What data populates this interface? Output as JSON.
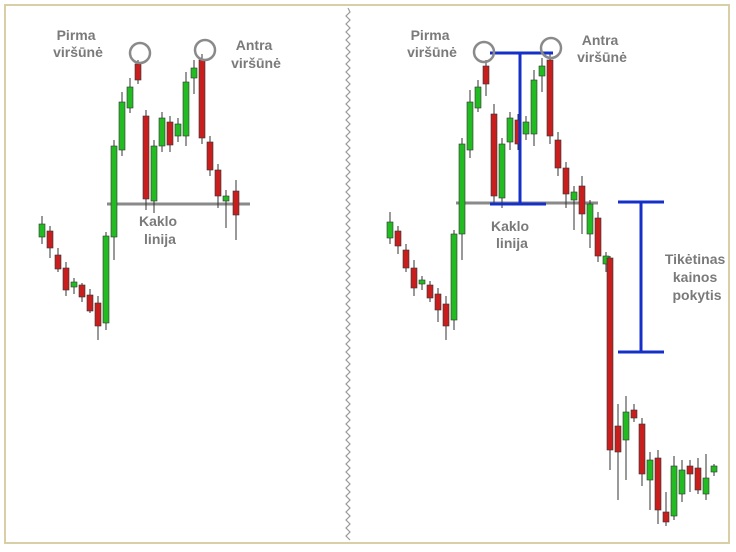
{
  "left_panel": {
    "peak1_label": [
      "Pirma",
      "viršūnė"
    ],
    "peak2_label": [
      "Antra",
      "viršūnė"
    ],
    "neckline_label": [
      "Kaklo",
      "linija"
    ]
  },
  "right_panel": {
    "peak1_label": [
      "Pirma",
      "viršūnė"
    ],
    "peak2_label": [
      "Antra",
      "viršūnė"
    ],
    "neckline_label": [
      "Kaklo",
      "linija"
    ],
    "target_label": [
      "Tikėtinas",
      "kainos",
      "pokytis"
    ]
  },
  "colors": {
    "bull": "#22bb22",
    "bear": "#c81e1e",
    "wick": "#333333",
    "neckline": "#8a8a8a",
    "marker": "#8a8a8a",
    "measure": "#1530c8",
    "label": "#7a7a7a",
    "frame": "#d8cfa6",
    "divider": "#9a9a9a"
  },
  "icons": {
    "peak_marker": "circle-outline-icon",
    "measure_bracket": "i-beam-bracket-icon",
    "panel_divider": "zigzag-divider-icon"
  }
}
